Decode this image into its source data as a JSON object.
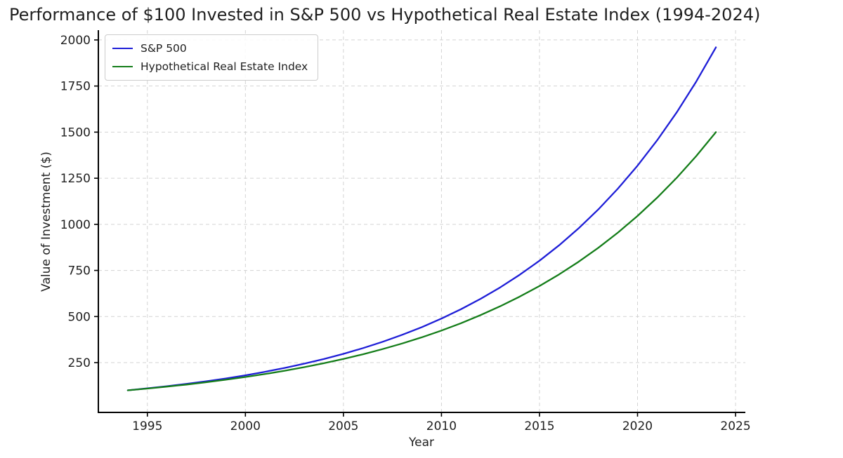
{
  "chart_data": {
    "type": "line",
    "title": "Performance of $100 Invested in S&P 500 vs Hypothetical Real Estate Index (1994-2024)",
    "xlabel": "Year",
    "ylabel": "Value of Investment ($)",
    "x": [
      1994,
      1995,
      1996,
      1997,
      1998,
      1999,
      2000,
      2001,
      2002,
      2003,
      2004,
      2005,
      2006,
      2007,
      2008,
      2009,
      2010,
      2011,
      2012,
      2013,
      2014,
      2015,
      2016,
      2017,
      2018,
      2019,
      2020,
      2021,
      2022,
      2023,
      2024
    ],
    "series": [
      {
        "name": "S&P 500",
        "color": "#1e1ed7",
        "values": [
          100,
          110.4,
          121.9,
          134.7,
          148.7,
          164.2,
          181.3,
          200.2,
          221.1,
          244.2,
          269.6,
          297.7,
          328.8,
          363.1,
          400.9,
          442.7,
          488.9,
          539.9,
          596.2,
          658.3,
          727.0,
          802.8,
          886.5,
          978.9,
          1080.9,
          1193.7,
          1318.1,
          1455.5,
          1607.3,
          1774.9,
          1960
        ]
      },
      {
        "name": "Hypothetical Real Estate Index",
        "color": "#147d19",
        "values": [
          100,
          109.4,
          119.8,
          131.1,
          143.5,
          157.1,
          171.9,
          188.1,
          205.9,
          225.3,
          246.6,
          269.9,
          295.4,
          323.3,
          353.9,
          387.3,
          423.9,
          464.0,
          507.8,
          555.8,
          608.3,
          665.7,
          728.6,
          797.5,
          872.8,
          955.3,
          1045.5,
          1144.3,
          1252.4,
          1370.7,
          1500
        ]
      }
    ],
    "x_ticks": [
      1995,
      2000,
      2005,
      2010,
      2015,
      2020,
      2025
    ],
    "y_ticks": [
      250,
      500,
      750,
      1000,
      1250,
      1500,
      1750,
      2000
    ],
    "xlim": [
      1992.5,
      2025.5
    ],
    "ylim": [
      -20,
      2053
    ],
    "grid": true,
    "grid_style": "dashed",
    "legend_position": "upper left",
    "colors": {
      "grid": "#cccccc",
      "spine": "#000000",
      "text": "#1f1f1f",
      "background": "#ffffff"
    }
  }
}
